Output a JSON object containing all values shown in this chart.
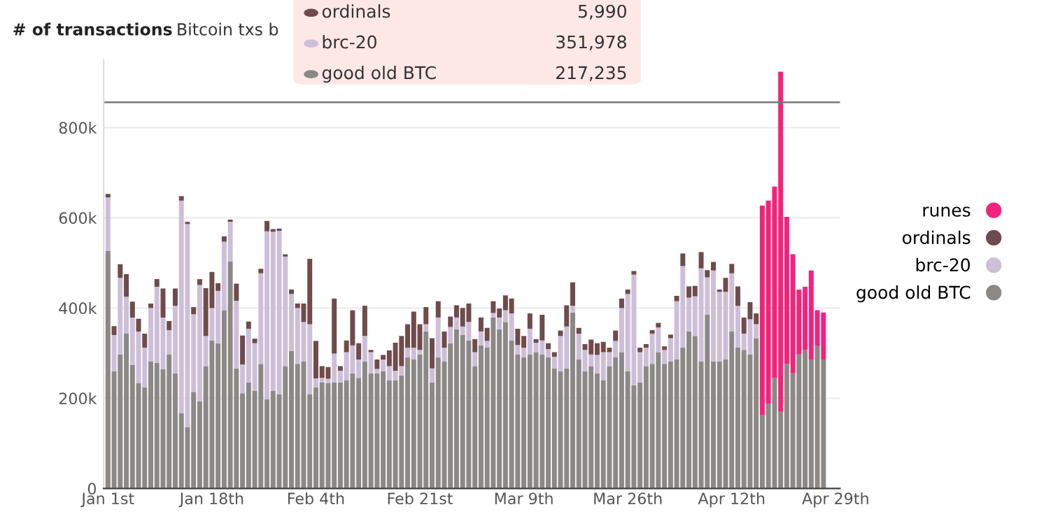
{
  "chart_data": {
    "type": "bar",
    "stacked": true,
    "title": "# of transactions",
    "subtitle": "Bitcoin txs b",
    "annotations": [
      "ordinals",
      "5,990",
      "brc-20",
      "351,978",
      "good old BTC",
      "217,235"
    ],
    "categories": [
      "Jan 1st",
      null,
      null,
      null,
      null,
      null,
      null,
      null,
      null,
      null,
      null,
      null,
      null,
      null,
      null,
      null,
      null,
      "Jan 18th",
      null,
      null,
      null,
      null,
      null,
      null,
      null,
      null,
      null,
      null,
      null,
      null,
      null,
      null,
      null,
      null,
      "Feb 4th",
      null,
      null,
      null,
      null,
      null,
      null,
      null,
      null,
      null,
      null,
      null,
      null,
      null,
      null,
      null,
      null,
      "Feb 21st",
      null,
      null,
      null,
      null,
      null,
      null,
      null,
      null,
      null,
      null,
      null,
      null,
      null,
      null,
      null,
      null,
      "Mar 9th",
      null,
      null,
      null,
      null,
      null,
      null,
      null,
      null,
      null,
      null,
      null,
      null,
      null,
      null,
      null,
      null,
      "Mar 26th",
      null,
      null,
      null,
      null,
      null,
      null,
      null,
      null,
      null,
      null,
      null,
      null,
      null,
      null,
      null,
      null,
      "Apr 12th",
      null,
      null,
      null,
      null,
      null,
      null,
      null,
      null,
      null,
      null,
      null,
      null,
      null,
      null,
      null,
      null,
      "Apr 29th"
    ],
    "series": [
      {
        "name": "good old BTC",
        "color": "#8b8886",
        "values": [
          527000,
          260000,
          297000,
          343000,
          274000,
          233000,
          224000,
          281000,
          278000,
          264000,
          297000,
          255000,
          167000,
          136000,
          214000,
          193000,
          271000,
          328000,
          322000,
          395000,
          503000,
          266000,
          211000,
          235000,
          217000,
          276000,
          198000,
          217000,
          209000,
          271000,
          305000,
          276000,
          281000,
          209000,
          224000,
          235000,
          233000,
          235000,
          235000,
          240000,
          255000,
          245000,
          281000,
          255000,
          255000,
          260000,
          240000,
          240000,
          250000,
          291000,
          286000,
          297000,
          348000,
          235000,
          291000,
          281000,
          322000,
          353000,
          340000,
          328000,
          271000,
          317000,
          312000,
          379000,
          353000,
          369000,
          328000,
          297000,
          291000,
          297000,
          302000,
          297000,
          291000,
          266000,
          260000,
          266000,
          390000,
          286000,
          260000,
          271000,
          255000,
          240000,
          271000,
          291000,
          302000,
          260000,
          229000,
          235000,
          271000,
          276000,
          302000,
          276000,
          281000,
          286000,
          312000,
          348000,
          338000,
          281000,
          385000,
          281000,
          281000,
          286000,
          348000,
          312000,
          307000,
          297000,
          333000,
          162000,
          188000,
          245000,
          170000,
          276000,
          255000,
          297000,
          307000,
          286000,
          317000,
          286000,
          null,
          null
        ]
      },
      {
        "name": "brc-20",
        "color": "#cdbfd8",
        "values": [
          118000,
          80000,
          170000,
          82000,
          105000,
          115000,
          88000,
          119000,
          169000,
          115000,
          54000,
          150000,
          471000,
          450000,
          172000,
          258000,
          67000,
          72000,
          116000,
          152000,
          88000,
          150000,
          64000,
          119000,
          105000,
          201000,
          372000,
          352000,
          362000,
          243000,
          126000,
          124000,
          88000,
          155000,
          20000,
          10000,
          10000,
          64000,
          26000,
          62000,
          62000,
          41000,
          57000,
          47000,
          10000,
          26000,
          31000,
          21000,
          21000,
          21000,
          26000,
          10000,
          16000,
          31000,
          88000,
          31000,
          36000,
          26000,
          19000,
          41000,
          31000,
          31000,
          15000,
          10000,
          26000,
          26000,
          60000,
          21000,
          21000,
          57000,
          21000,
          31000,
          18000,
          26000,
          78000,
          93000,
          15000,
          57000,
          47000,
          26000,
          41000,
          62000,
          31000,
          36000,
          98000,
          171000,
          245000,
          67000,
          41000,
          67000,
          55000,
          31000,
          52000,
          129000,
          181000,
          75000,
          88000,
          207000,
          83000,
          202000,
          155000,
          150000,
          129000,
          93000,
          36000,
          78000,
          31000,
          0,
          0,
          0,
          0,
          0,
          0,
          0,
          0,
          0,
          0,
          0,
          null,
          null
        ]
      },
      {
        "name": "ordinals",
        "color": "#6f4b4b",
        "values": [
          8000,
          20000,
          30000,
          50000,
          35000,
          28000,
          31000,
          10000,
          17000,
          64000,
          20000,
          38000,
          10000,
          5000,
          16000,
          13000,
          106000,
          80000,
          17000,
          12000,
          5000,
          38000,
          64000,
          16000,
          10000,
          10000,
          23000,
          6000,
          5000,
          5000,
          10000,
          10000,
          41000,
          145000,
          83000,
          26000,
          26000,
          122000,
          10000,
          26000,
          78000,
          36000,
          67000,
          5000,
          21000,
          10000,
          35000,
          62000,
          67000,
          52000,
          80000,
          57000,
          38000,
          67000,
          36000,
          36000,
          23000,
          27000,
          41000,
          41000,
          29000,
          31000,
          29000,
          26000,
          20000,
          33000,
          33000,
          36000,
          26000,
          34000,
          8000,
          57000,
          13000,
          10000,
          12000,
          47000,
          52000,
          13000,
          13000,
          33000,
          26000,
          23000,
          10000,
          23000,
          21000,
          10000,
          8000,
          10000,
          8000,
          8000,
          10000,
          8000,
          8000,
          12000,
          28000,
          25000,
          23000,
          36000,
          16000,
          19000,
          5000,
          31000,
          21000,
          43000,
          36000,
          38000,
          24000,
          0,
          0,
          0,
          0,
          0,
          0,
          0,
          0,
          0,
          0,
          0,
          null,
          null
        ]
      },
      {
        "name": "runes",
        "color": "#f4227c",
        "values": [
          null,
          null,
          null,
          null,
          null,
          null,
          null,
          null,
          null,
          null,
          null,
          null,
          null,
          null,
          null,
          null,
          null,
          null,
          null,
          null,
          null,
          null,
          null,
          null,
          null,
          null,
          null,
          null,
          null,
          null,
          null,
          null,
          null,
          null,
          null,
          null,
          null,
          null,
          null,
          null,
          null,
          null,
          null,
          null,
          null,
          null,
          null,
          null,
          null,
          null,
          null,
          null,
          null,
          null,
          null,
          null,
          null,
          null,
          null,
          null,
          null,
          null,
          null,
          null,
          null,
          null,
          null,
          null,
          null,
          null,
          null,
          null,
          null,
          null,
          null,
          null,
          null,
          null,
          null,
          null,
          null,
          null,
          null,
          null,
          null,
          null,
          null,
          null,
          null,
          null,
          null,
          null,
          null,
          null,
          null,
          null,
          null,
          null,
          null,
          null,
          null,
          null,
          null,
          null,
          null,
          null,
          null,
          465000,
          450000,
          424000,
          754000,
          326000,
          264000,
          144000,
          140000,
          197000,
          78000,
          104000,
          null,
          null
        ]
      }
    ],
    "ylim": [
      0,
      950000
    ],
    "yticks": [
      0,
      {
        "value": 200000,
        "label": "200k"
      },
      {
        "value": 400000,
        "label": "400k"
      },
      {
        "value": 600000,
        "label": "600k"
      },
      {
        "value": 800000,
        "label": "800k"
      }
    ],
    "ref_lines": [
      {
        "axis": "y",
        "value": 856000,
        "label": null,
        "color": "#777777"
      }
    ],
    "grid": "y",
    "legend": "right"
  }
}
